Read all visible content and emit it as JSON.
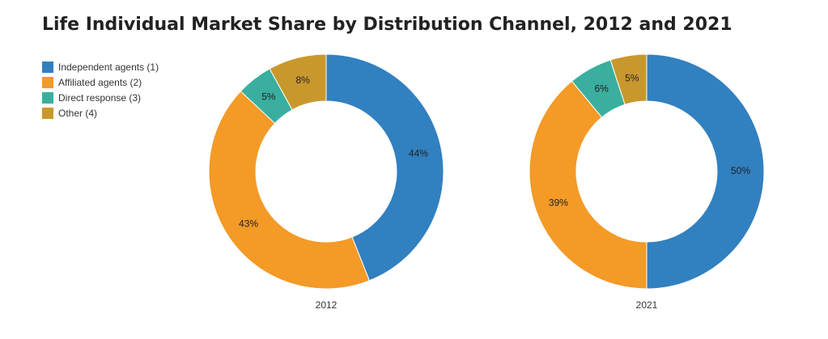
{
  "chart_data": {
    "type": "pie",
    "title": "Life Individual Market Share by Distribution Channel, 2012 and 2021",
    "legend_position": "top-left",
    "series_legend": [
      {
        "name": "Independent agents (1)",
        "color": "#3180c0"
      },
      {
        "name": "Affiliated agents (2)",
        "color": "#f49a27"
      },
      {
        "name": "Direct response (3)",
        "color": "#3aaf9f"
      },
      {
        "name": "Other (4)",
        "color": "#c9982d"
      }
    ],
    "charts": [
      {
        "label": "2012",
        "values": [
          44,
          43,
          5,
          8
        ],
        "value_labels": [
          "44%",
          "43%",
          "5%",
          "8%"
        ]
      },
      {
        "label": "2021",
        "values": [
          50,
          39,
          6,
          5
        ],
        "value_labels": [
          "50%",
          "39%",
          "6%",
          "5%"
        ]
      }
    ]
  }
}
